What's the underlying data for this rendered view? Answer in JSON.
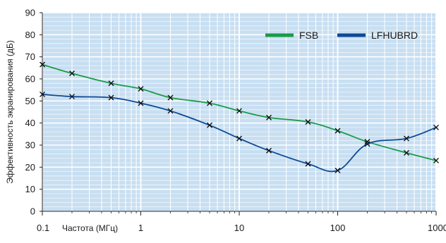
{
  "chart_data": {
    "type": "line",
    "title": "",
    "xlabel": "Частота (МГц)",
    "ylabel": "Эффективность экранирования (дБ)",
    "xscale": "log",
    "xlim": [
      0.1,
      1000
    ],
    "ylim": [
      0,
      90
    ],
    "grid": true,
    "legend_position": "top-right",
    "x_ticks": [
      0.1,
      1,
      10,
      100,
      1000
    ],
    "x_tick_labels": [
      "0.1",
      "1",
      "10",
      "100",
      "1000"
    ],
    "y_ticks": [
      0,
      10,
      20,
      30,
      40,
      50,
      60,
      70,
      80,
      90
    ],
    "y_tick_labels": [
      "0",
      "10",
      "20",
      "30",
      "40",
      "50",
      "60",
      "70",
      "80",
      "90"
    ],
    "plot_background": "#c8dff2",
    "grid_color": "#ffffff",
    "series": [
      {
        "name": "FSB",
        "color": "#1a9b48",
        "marker": "x",
        "points": [
          {
            "x": 0.1,
            "y": 66.5
          },
          {
            "x": 0.2,
            "y": 62.5
          },
          {
            "x": 0.5,
            "y": 58.0
          },
          {
            "x": 1,
            "y": 55.5
          },
          {
            "x": 2,
            "y": 51.5
          },
          {
            "x": 5,
            "y": 49.0
          },
          {
            "x": 10,
            "y": 45.5
          },
          {
            "x": 20,
            "y": 42.5
          },
          {
            "x": 50,
            "y": 40.5
          },
          {
            "x": 100,
            "y": 36.5
          },
          {
            "x": 200,
            "y": 31.5
          },
          {
            "x": 500,
            "y": 26.5
          },
          {
            "x": 1000,
            "y": 23.0
          }
        ]
      },
      {
        "name": "LFHUBRD",
        "color": "#0d4a96",
        "marker": "x",
        "points": [
          {
            "x": 0.1,
            "y": 53.0
          },
          {
            "x": 0.2,
            "y": 52.0
          },
          {
            "x": 0.5,
            "y": 51.5
          },
          {
            "x": 1,
            "y": 49.0
          },
          {
            "x": 2,
            "y": 45.5
          },
          {
            "x": 5,
            "y": 39.0
          },
          {
            "x": 10,
            "y": 33.0
          },
          {
            "x": 20,
            "y": 27.5
          },
          {
            "x": 50,
            "y": 21.5
          },
          {
            "x": 100,
            "y": 18.5
          },
          {
            "x": 200,
            "y": 30.5
          },
          {
            "x": 500,
            "y": 33.0
          },
          {
            "x": 1000,
            "y": 38.0
          }
        ]
      }
    ]
  }
}
